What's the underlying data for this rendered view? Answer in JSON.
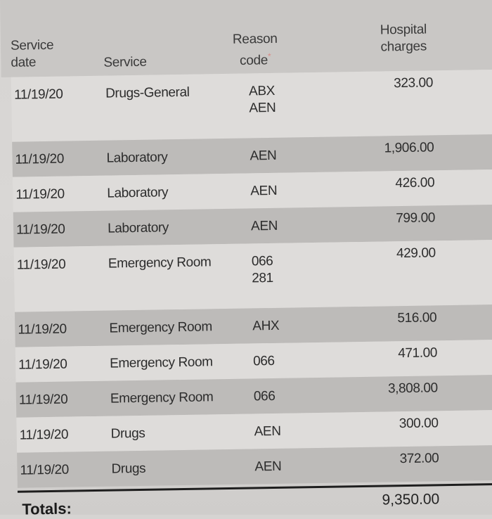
{
  "table": {
    "headers": {
      "service_date_line1": "Service",
      "service_date_line2": "date",
      "service": "Service",
      "reason_code_line1": "Reason",
      "reason_code_line2": "code",
      "reason_code_marker": "*",
      "hospital_charges_line1": "Hospital",
      "hospital_charges_line2": "charges"
    },
    "rows": [
      {
        "date": "11/19/20",
        "service": "Drugs-General",
        "codes": [
          "ABX",
          "AEN"
        ],
        "charge": "323.00"
      },
      {
        "date": "11/19/20",
        "service": "Laboratory",
        "codes": [
          "AEN"
        ],
        "charge": "1,906.00"
      },
      {
        "date": "11/19/20",
        "service": "Laboratory",
        "codes": [
          "AEN"
        ],
        "charge": "426.00"
      },
      {
        "date": "11/19/20",
        "service": "Laboratory",
        "codes": [
          "AEN"
        ],
        "charge": "799.00"
      },
      {
        "date": "11/19/20",
        "service": "Emergency Room",
        "codes": [
          "066",
          "281"
        ],
        "charge": "429.00"
      },
      {
        "date": "11/19/20",
        "service": "Emergency Room",
        "codes": [
          "AHX"
        ],
        "charge": "516.00"
      },
      {
        "date": "11/19/20",
        "service": "Emergency Room",
        "codes": [
          "066"
        ],
        "charge": "471.00"
      },
      {
        "date": "11/19/20",
        "service": "Emergency Room",
        "codes": [
          "066"
        ],
        "charge": "3,808.00"
      },
      {
        "date": "11/19/20",
        "service": "Drugs",
        "codes": [
          "AEN"
        ],
        "charge": "300.00"
      },
      {
        "date": "11/19/20",
        "service": "Drugs",
        "codes": [
          "AEN"
        ],
        "charge": "372.00"
      }
    ],
    "totals": {
      "label": "Totals:",
      "charge": "9,350.00"
    }
  },
  "colors": {
    "asterisk": "#d98a86",
    "row_shade": "#bdbbb9",
    "rule": "#1e1e1e"
  }
}
